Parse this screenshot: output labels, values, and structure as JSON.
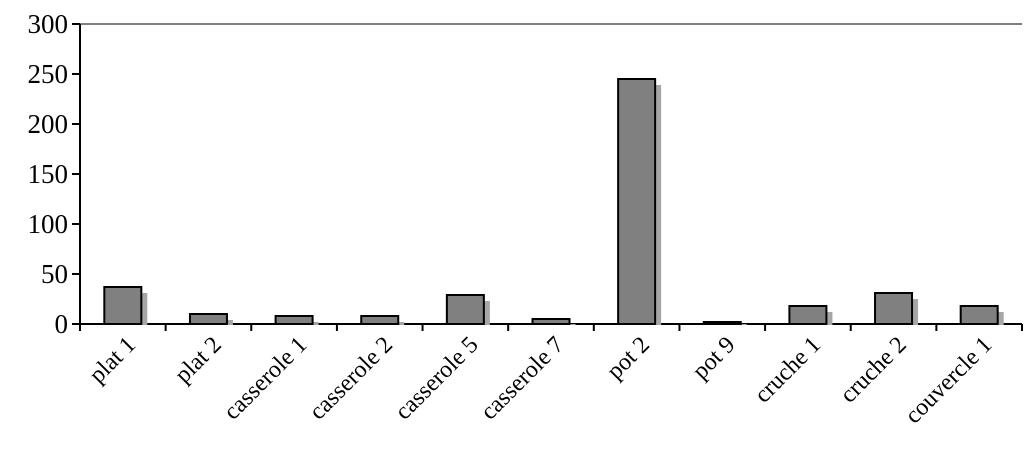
{
  "chart_data": {
    "type": "bar",
    "title": "",
    "xlabel": "",
    "ylabel": "",
    "categories": [
      "plat 1",
      "plat 2",
      "casserole 1",
      "casserole 2",
      "casserole 5",
      "casserole 7",
      "pot 2",
      "pot 9",
      "cruche 1",
      "cruche 2",
      "couvercle 1"
    ],
    "values": [
      37,
      10,
      8,
      8,
      29,
      5,
      245,
      2,
      18,
      31,
      18
    ],
    "ylim": [
      0,
      300
    ],
    "yticks": [
      "0",
      "50",
      "100",
      "150",
      "200",
      "250",
      "300"
    ],
    "grid": false,
    "legend": "none",
    "colors": {
      "bar_fill": "#808080",
      "bar_stroke": "#000000",
      "shadow": "#a6a6a6",
      "axis": "#000000"
    }
  }
}
